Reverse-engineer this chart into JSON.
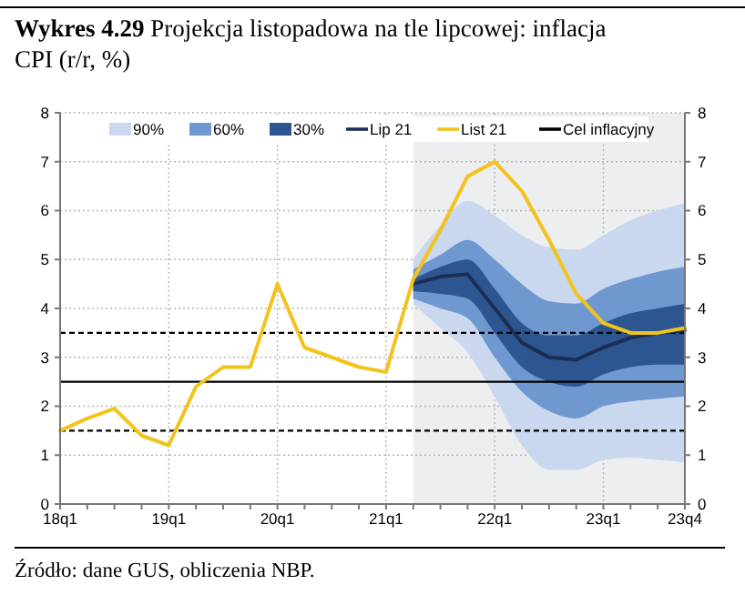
{
  "chart_data": {
    "type": "line",
    "title": "Wykres 4.29 Projekcja listopadowa na tle lipcowej: inflacja CPI (r/r, %)",
    "annotations": [
      "Źródło: dane GUS, obliczenia NBP."
    ],
    "categories": [
      "18q1",
      null,
      null,
      null,
      "19q1",
      null,
      null,
      null,
      "20q1",
      null,
      null,
      null,
      "21q1",
      null,
      null,
      null,
      "22q1",
      null,
      null,
      null,
      "23q1",
      null,
      null,
      "23q4"
    ],
    "series": [
      {
        "name": "90%",
        "type": "area",
        "color": "#c9d8ee",
        "values": [
          null,
          null,
          null,
          null,
          null,
          null,
          null,
          null,
          null,
          null,
          null,
          null,
          null,
          null,
          null,
          null,
          null,
          null,
          null,
          null,
          null,
          null,
          null,
          null
        ],
        "upper": [
          null,
          null,
          null,
          null,
          null,
          null,
          null,
          null,
          null,
          null,
          null,
          null,
          null,
          5.0,
          5.7,
          6.2,
          5.9,
          5.5,
          5.25,
          5.2,
          5.5,
          5.8,
          6.0,
          6.15
        ],
        "lower": [
          null,
          null,
          null,
          null,
          null,
          null,
          null,
          null,
          null,
          null,
          null,
          null,
          null,
          4.1,
          3.6,
          3.1,
          2.2,
          1.2,
          0.7,
          0.7,
          0.9,
          0.95,
          0.9,
          0.85
        ]
      },
      {
        "name": "60%",
        "type": "area",
        "color": "#7098d0",
        "values": [
          null,
          null,
          null,
          null,
          null,
          null,
          null,
          null,
          null,
          null,
          null,
          null,
          null,
          null,
          null,
          null,
          null,
          null,
          null,
          null,
          null,
          null,
          null,
          null
        ],
        "upper": [
          null,
          null,
          null,
          null,
          null,
          null,
          null,
          null,
          null,
          null,
          null,
          null,
          null,
          4.8,
          5.1,
          5.4,
          5.0,
          4.5,
          4.15,
          4.1,
          4.4,
          4.6,
          4.75,
          4.85
        ],
        "lower": [
          null,
          null,
          null,
          null,
          null,
          null,
          null,
          null,
          null,
          null,
          null,
          null,
          null,
          4.2,
          4.0,
          3.8,
          3.0,
          2.3,
          1.9,
          1.75,
          2.0,
          2.1,
          2.15,
          2.2
        ]
      },
      {
        "name": "30%",
        "type": "area",
        "color": "#2d5691",
        "values": [
          null,
          null,
          null,
          null,
          null,
          null,
          null,
          null,
          null,
          null,
          null,
          null,
          null,
          null,
          null,
          null,
          null,
          null,
          null,
          null,
          null,
          null,
          null,
          null
        ],
        "upper": [
          null,
          null,
          null,
          null,
          null,
          null,
          null,
          null,
          null,
          null,
          null,
          null,
          null,
          4.6,
          4.85,
          5.0,
          4.4,
          3.7,
          3.45,
          3.45,
          3.7,
          3.9,
          4.0,
          4.1
        ],
        "lower": [
          null,
          null,
          null,
          null,
          null,
          null,
          null,
          null,
          null,
          null,
          null,
          null,
          null,
          4.35,
          4.3,
          4.2,
          3.5,
          2.8,
          2.5,
          2.4,
          2.65,
          2.8,
          2.85,
          2.85
        ]
      },
      {
        "name": "Lip 21",
        "type": "line",
        "color": "#1b2d55",
        "values": [
          null,
          null,
          null,
          null,
          null,
          null,
          null,
          null,
          null,
          null,
          null,
          null,
          null,
          4.5,
          4.65,
          4.7,
          4.0,
          3.3,
          3.0,
          2.95,
          3.2,
          3.4,
          3.5,
          3.55
        ]
      },
      {
        "name": "List 21",
        "type": "line",
        "color": "#f2c31b",
        "values": [
          1.5,
          1.75,
          1.95,
          1.4,
          1.2,
          2.4,
          2.8,
          2.8,
          4.5,
          3.2,
          3.0,
          2.8,
          2.7,
          4.6,
          5.6,
          6.7,
          7.0,
          6.4,
          5.4,
          4.3,
          3.7,
          3.5,
          3.5,
          3.6
        ]
      }
    ],
    "ref_lines": [
      {
        "axis": "y",
        "value": 2.5,
        "label": "Cel inflacyjny",
        "color": "#000000",
        "line_style": "solid"
      },
      {
        "axis": "y",
        "value": 1.5,
        "label": null,
        "color": "#000000",
        "line_style": "dashed"
      },
      {
        "axis": "y",
        "value": 3.5,
        "label": null,
        "color": "#000000",
        "line_style": "dashed"
      }
    ],
    "ylim": [
      0,
      8
    ],
    "yticks": [
      0,
      1,
      2,
      3,
      4,
      5,
      6,
      7,
      8
    ],
    "y2lim": [
      0,
      8
    ],
    "y2ticks": [
      0,
      1,
      2,
      3,
      4,
      5,
      6,
      7,
      8
    ],
    "grid": true,
    "legend": "top",
    "marker": "none",
    "line_style": "solid"
  }
}
